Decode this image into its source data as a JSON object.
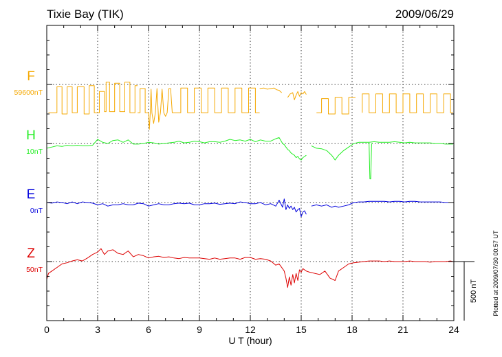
{
  "chart_data": {
    "type": "line",
    "title": "Tixie Bay (TIK)",
    "date": "2009/06/29",
    "xlabel": "U T (hour)",
    "xlim": [
      0,
      24
    ],
    "xticks": [
      "0",
      "3",
      "6",
      "9",
      "12",
      "15",
      "18",
      "21",
      "24"
    ],
    "plotted_note": "Plotted at 2009/07/30 00:57 UT",
    "scale_bar_label": "500 nT",
    "scale_bar_nT": 500,
    "series": [
      {
        "name": "F",
        "baseline_label": "59600nT",
        "color": "#f5a800",
        "baseline_nT": 59600,
        "segments": [
          {
            "x": [
              0.1,
              0.6,
              0.6,
              0.9,
              0.9,
              1.2,
              1.2,
              1.5,
              1.5,
              1.8,
              1.8,
              2.2,
              2.2,
              2.5,
              2.5,
              2.8,
              2.8,
              3.1,
              3.1,
              3.4,
              3.4,
              3.5,
              3.5,
              3.7,
              3.7,
              4.0,
              4.0,
              4.3,
              4.3,
              4.6,
              4.6,
              4.9,
              4.9,
              5.2,
              5.2,
              5.35
            ],
            "y": [
              -240,
              -240,
              -20,
              -20,
              -250,
              -250,
              -20,
              -20,
              -240,
              -240,
              -20,
              -20,
              -250,
              -250,
              -10,
              -10,
              -240,
              -240,
              -60,
              -60,
              -230,
              -230,
              20,
              20,
              -230,
              -230,
              10,
              10,
              -230,
              -230,
              20,
              20,
              -240,
              -240,
              -10,
              -10
            ]
          },
          {
            "x": [
              5.35,
              5.5,
              5.5,
              5.8,
              5.8,
              6.0,
              6.05,
              6.1,
              6.15,
              6.2,
              6.3,
              6.4,
              6.5,
              6.6,
              6.7,
              6.8,
              6.9,
              7.0,
              7.1,
              7.2,
              7.3,
              7.4,
              7.5
            ],
            "y": [
              -240,
              -240,
              -35,
              -35,
              -240,
              -240,
              -380,
              -240,
              -40,
              -240,
              -330,
              -240,
              -35,
              -320,
              -240,
              -40,
              -240,
              -270,
              -240,
              -35,
              -35,
              -240,
              -240
            ]
          },
          {
            "x": [
              7.5,
              7.9,
              7.9,
              8.3,
              8.3,
              8.7,
              8.7,
              9.1,
              9.1,
              9.5,
              9.5,
              9.9,
              9.9,
              10.3,
              10.3,
              10.7,
              10.7,
              11.1,
              11.1,
              11.5,
              11.5,
              11.9,
              11.9,
              12.3,
              12.3,
              12.55
            ],
            "y": [
              -240,
              -240,
              -30,
              -30,
              -240,
              -240,
              -30,
              -30,
              -240,
              -240,
              -30,
              -30,
              -240,
              -240,
              -30,
              -30,
              -240,
              -240,
              -30,
              -30,
              -240,
              -240,
              -30,
              -30,
              -240,
              -240
            ]
          },
          {
            "x": [
              12.55,
              12.8,
              13.0,
              13.2,
              13.4,
              13.55,
              13.7,
              13.85
            ],
            "y": [
              -35,
              -30,
              -40,
              -35,
              -30,
              -45,
              -50,
              -70
            ]
          },
          {
            "x": [
              14.2,
              14.35,
              14.5,
              14.6,
              14.7,
              14.8,
              14.9,
              15.0,
              15.1,
              15.2,
              15.3
            ],
            "y": [
              -110,
              -80,
              -70,
              -130,
              -90,
              -60,
              -100,
              -70,
              -80,
              -60,
              -85
            ]
          },
          {
            "x": [
              15.9,
              16.2,
              16.2,
              16.6,
              16.6,
              17.0,
              17.0,
              17.4,
              17.4,
              17.8,
              17.8,
              18.2
            ],
            "y": [
              -240,
              -240,
              -120,
              -120,
              -250,
              -250,
              -110,
              -110,
              -250,
              -250,
              -110,
              -110
            ]
          },
          {
            "x": [
              18.6,
              18.6,
              19.0,
              19.0,
              19.4,
              19.4,
              19.8,
              19.8,
              20.2,
              20.2,
              20.6,
              20.6,
              21.0,
              21.0,
              21.4,
              21.4,
              21.8,
              21.8,
              22.2,
              22.2,
              22.6,
              22.6,
              23.0,
              23.0,
              23.4,
              23.4,
              23.8,
              23.8,
              23.95
            ],
            "y": [
              -240,
              -80,
              -80,
              -240,
              -240,
              -80,
              -80,
              -240,
              -240,
              -80,
              -80,
              -240,
              -240,
              -80,
              -80,
              -240,
              -240,
              -80,
              -80,
              -240,
              -240,
              -80,
              -80,
              -240,
              -240,
              -80,
              -80,
              -240,
              -240
            ]
          }
        ]
      },
      {
        "name": "H",
        "baseline_label": "10nT",
        "color": "#22ee22",
        "baseline_nT": 10,
        "segments": [
          {
            "x": [
              0.0,
              0.3,
              0.6,
              0.9,
              1.2,
              1.5,
              1.8,
              2.1,
              2.4,
              2.7,
              3.0,
              3.3,
              3.6,
              3.9,
              4.2,
              4.5,
              4.8,
              5.1,
              5.4,
              5.7,
              6.0,
              6.3,
              6.6,
              6.9,
              7.2,
              7.5,
              7.8,
              8.1,
              8.4,
              8.7,
              9.0,
              9.3,
              9.6,
              9.9,
              10.2,
              10.5,
              10.8,
              11.1,
              11.4,
              11.7,
              12.0,
              12.3,
              12.6,
              12.9,
              13.2,
              13.5,
              13.7,
              13.9,
              14.0,
              14.1,
              14.2,
              14.3,
              14.4,
              14.5,
              14.6,
              14.7,
              14.8,
              14.9,
              15.0,
              15.1,
              15.2,
              15.3
            ],
            "y": [
              -40,
              -30,
              -20,
              -25,
              -15,
              -20,
              -15,
              -20,
              -20,
              -15,
              35,
              10,
              0,
              25,
              30,
              10,
              30,
              -5,
              -5,
              0,
              10,
              5,
              -5,
              0,
              5,
              10,
              20,
              5,
              10,
              20,
              15,
              5,
              15,
              15,
              10,
              20,
              35,
              25,
              30,
              20,
              35,
              15,
              30,
              20,
              20,
              40,
              50,
              0,
              -10,
              -30,
              -50,
              -60,
              -80,
              -90,
              -100,
              -120,
              -110,
              -130,
              -140,
              -120,
              -110,
              -100
            ]
          },
          {
            "x": [
              15.6,
              15.9,
              16.2,
              16.5,
              16.8,
              17.0,
              17.2,
              17.5,
              17.8,
              18.1,
              18.4,
              18.7,
              19.0,
              19.3,
              19.6,
              19.9,
              20.2,
              20.5,
              20.8,
              21.1,
              21.4,
              21.7,
              22.0,
              22.3,
              22.6,
              22.9,
              23.2,
              23.5,
              23.8,
              23.95
            ],
            "y": [
              -20,
              -40,
              -45,
              -60,
              -100,
              -140,
              -100,
              -60,
              -30,
              0,
              10,
              10,
              10,
              15,
              10,
              10,
              10,
              15,
              10,
              5,
              10,
              5,
              5,
              5,
              5,
              0,
              0,
              -5,
              -5,
              -5
            ]
          },
          {
            "x": [
              18.95,
              19.0,
              19.05,
              19.1,
              19.15,
              19.2
            ],
            "y": [
              5,
              -5,
              -300,
              -300,
              -5,
              5
            ]
          }
        ]
      },
      {
        "name": "E",
        "baseline_label": "0nT",
        "color": "#0000dd",
        "baseline_nT": 0,
        "segments": [
          {
            "x": [
              0.0,
              0.3,
              0.6,
              0.9,
              1.2,
              1.5,
              1.8,
              2.1,
              2.4,
              2.7,
              3.0,
              3.3,
              3.6,
              3.9,
              4.2,
              4.5,
              4.8,
              5.1,
              5.4,
              5.7,
              6.0,
              6.3,
              6.6,
              6.9,
              7.2,
              7.5,
              7.8,
              8.1,
              8.4,
              8.7,
              9.0,
              9.3,
              9.6,
              9.9,
              10.2,
              10.5,
              10.8,
              11.1,
              11.4,
              11.7,
              12.0,
              12.3,
              12.6,
              12.9,
              13.2,
              13.5,
              13.7,
              13.9,
              14.0,
              14.1,
              14.2,
              14.3,
              14.4,
              14.5,
              14.6,
              14.7,
              14.8,
              14.9,
              15.0,
              15.1,
              15.2,
              15.3
            ],
            "y": [
              0,
              -5,
              5,
              0,
              -10,
              5,
              -10,
              5,
              0,
              -5,
              -20,
              -10,
              -30,
              -20,
              -20,
              -10,
              -20,
              -20,
              -5,
              -10,
              -30,
              -20,
              -10,
              -20,
              -20,
              -10,
              -5,
              -10,
              -5,
              -20,
              -20,
              -10,
              -10,
              -5,
              -15,
              -10,
              -5,
              -10,
              5,
              0,
              -10,
              -10,
              0,
              -20,
              -10,
              -30,
              20,
              -40,
              30,
              -60,
              -20,
              -50,
              -30,
              -60,
              -40,
              -80,
              -60,
              -50,
              -120,
              -80,
              -70,
              -100
            ]
          },
          {
            "x": [
              15.6,
              15.9,
              16.2,
              16.5,
              16.8,
              17.0,
              17.2,
              17.5,
              17.8,
              18.1,
              18.4,
              18.7,
              19.0,
              19.3,
              19.6,
              19.9,
              20.2,
              20.5,
              20.8,
              21.1,
              21.4,
              21.7,
              22.0,
              22.3,
              22.6,
              22.9,
              23.2,
              23.5,
              23.8,
              23.95
            ],
            "y": [
              -30,
              -20,
              -30,
              -20,
              -40,
              -30,
              -40,
              -30,
              -20,
              0,
              5,
              5,
              10,
              10,
              10,
              10,
              5,
              10,
              10,
              5,
              10,
              10,
              5,
              5,
              5,
              5,
              5,
              0,
              0,
              0
            ]
          }
        ]
      },
      {
        "name": "Z",
        "baseline_label": "50nT",
        "color": "#dd0000",
        "baseline_nT": 50,
        "segments": [
          {
            "x": [
              0.0,
              0.1,
              0.3,
              0.6,
              0.9,
              1.2,
              1.5,
              1.8,
              2.1,
              2.4,
              2.7,
              3.0,
              3.2,
              3.4,
              3.6,
              3.9,
              4.2,
              4.5,
              4.8,
              5.1,
              5.4,
              5.7,
              6.0,
              6.3,
              6.6,
              6.9,
              7.2,
              7.5,
              7.8,
              8.1,
              8.4,
              8.7,
              9.0,
              9.3,
              9.6,
              9.9,
              10.2,
              10.5,
              10.8,
              11.1,
              11.4,
              11.7,
              12.0,
              12.3,
              12.6,
              12.9,
              13.2,
              13.5,
              13.7,
              13.9,
              14.0,
              14.1,
              14.2,
              14.3,
              14.4,
              14.5,
              14.6,
              14.7,
              14.8,
              14.9,
              15.0,
              15.1,
              15.2,
              15.3,
              15.5,
              15.8,
              16.1,
              16.4,
              16.7,
              17.0,
              17.2,
              17.5,
              17.8,
              18.1,
              18.4,
              18.7,
              19.0,
              19.3,
              19.6,
              19.9,
              20.2,
              20.5,
              20.8,
              21.1,
              21.4,
              21.7,
              22.0,
              22.3,
              22.6,
              22.9,
              23.2,
              23.5,
              23.8,
              23.95
            ],
            "y": [
              -150,
              -100,
              -80,
              -50,
              -20,
              -10,
              5,
              15,
              5,
              30,
              60,
              80,
              110,
              60,
              90,
              100,
              70,
              60,
              90,
              40,
              60,
              50,
              30,
              40,
              45,
              35,
              40,
              30,
              25,
              35,
              30,
              30,
              30,
              25,
              20,
              30,
              20,
              25,
              30,
              30,
              20,
              35,
              35,
              20,
              25,
              20,
              5,
              -30,
              -20,
              -60,
              -80,
              -140,
              -220,
              -130,
              -200,
              -110,
              -180,
              -100,
              -160,
              -70,
              -90,
              -60,
              -70,
              -80,
              -90,
              -100,
              -110,
              -80,
              -140,
              -160,
              -80,
              -50,
              -20,
              -10,
              -5,
              0,
              5,
              5,
              5,
              0,
              5,
              0,
              0,
              0,
              5,
              0,
              0,
              0,
              -5,
              0,
              0,
              0,
              5,
              0
            ]
          }
        ]
      }
    ]
  }
}
